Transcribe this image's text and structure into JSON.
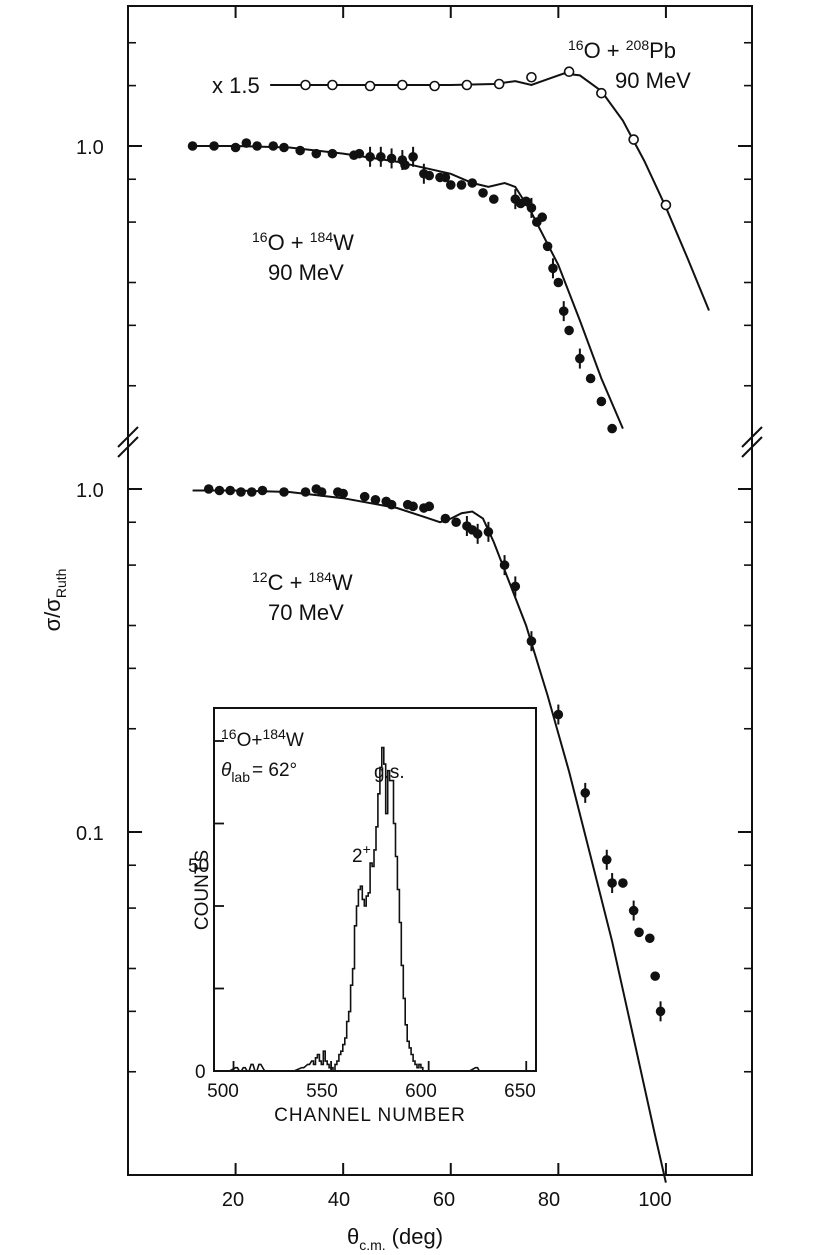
{
  "chart_data": [
    {
      "type": "scatter",
      "title": "",
      "xlabel_main": "θ",
      "xlabel_sub": "c.m.",
      "xlabel_unit": "(deg)",
      "ylabel_main": "σ/σ",
      "ylabel_sub": "Ruth",
      "yscale": "log",
      "xlim": [
        0,
        116
      ],
      "x_ticks": [
        20,
        40,
        60,
        80,
        100
      ],
      "x_tick_labels": [
        "20",
        "40",
        "60",
        "80",
        "100"
      ],
      "y_tick_labels": [
        "1.0",
        "1.0",
        "0.1"
      ],
      "break_marks": true,
      "series": [
        {
          "name": "16O + 208Pb 90 MeV",
          "label_pre": "16",
          "label_a": "O + ",
          "label_b_sup": "208",
          "label_b": "Pb",
          "label_energy": "90 MeV",
          "scale_label": "x 1.5",
          "marker": "open",
          "ylim": [
            0.4,
            1.6
          ],
          "x": [
            33,
            38,
            45,
            51,
            57,
            63,
            69,
            75,
            82,
            88,
            94,
            100
          ],
          "y": [
            1.5,
            1.5,
            1.49,
            1.5,
            1.49,
            1.5,
            1.51,
            1.58,
            1.64,
            1.42,
            1.04,
            0.67
          ],
          "curve_x": [
            32,
            40,
            50,
            60,
            68,
            72,
            75,
            78,
            81,
            84,
            88,
            92,
            96,
            100,
            104,
            108
          ],
          "curve_y": [
            1.5,
            1.5,
            1.5,
            1.5,
            1.51,
            1.54,
            1.5,
            1.56,
            1.62,
            1.6,
            1.44,
            1.18,
            0.9,
            0.66,
            0.47,
            0.33
          ]
        },
        {
          "name": "16O + 184W 90 MeV",
          "label_pre": "16",
          "label_a": "O + ",
          "label_b_sup": "184",
          "label_b": "W",
          "label_energy": "90 MeV",
          "marker": "filled",
          "ylim": [
            0.1,
            1.6
          ],
          "x": [
            12,
            16,
            20,
            22,
            24,
            27,
            29,
            32,
            35,
            38,
            42,
            43,
            45,
            47,
            49,
            51,
            51.5,
            53,
            55,
            56,
            58,
            59,
            60,
            62,
            64,
            66,
            68,
            72,
            73,
            74,
            75,
            76,
            77,
            78,
            79,
            80,
            81,
            82,
            84,
            86,
            88,
            90
          ],
          "y": [
            1.0,
            1.0,
            0.99,
            1.02,
            1.0,
            1.0,
            0.99,
            0.97,
            0.95,
            0.95,
            0.94,
            0.95,
            0.93,
            0.93,
            0.92,
            0.91,
            0.88,
            0.93,
            0.83,
            0.82,
            0.81,
            0.81,
            0.77,
            0.77,
            0.78,
            0.73,
            0.7,
            0.7,
            0.68,
            0.69,
            0.66,
            0.6,
            0.62,
            0.51,
            0.44,
            0.4,
            0.33,
            0.29,
            0.24,
            0.21,
            0.18,
            0.15
          ],
          "err_x": [
            45,
            47,
            49,
            51,
            53,
            55,
            72,
            75,
            79,
            81,
            84
          ],
          "curve_x": [
            12,
            20,
            30,
            40,
            50,
            60,
            64,
            67,
            70,
            72,
            75,
            80,
            84,
            88,
            92
          ],
          "curve_y": [
            1.0,
            1.0,
            0.99,
            0.95,
            0.9,
            0.83,
            0.78,
            0.76,
            0.78,
            0.76,
            0.64,
            0.45,
            0.31,
            0.21,
            0.15
          ]
        },
        {
          "name": "12C + 184W 70 MeV",
          "label_pre": "12",
          "label_a": "C + ",
          "label_b_sup": "184",
          "label_b": "W",
          "label_energy": "70 MeV",
          "marker": "filled",
          "ylim": [
            0.01,
            1.0
          ],
          "x": [
            15,
            17,
            19,
            21,
            23,
            25,
            29,
            33,
            35,
            36,
            39,
            40,
            44,
            46,
            48,
            49,
            52,
            53,
            55,
            56,
            59,
            61,
            63,
            64,
            65,
            67,
            70,
            72,
            75,
            80,
            85,
            89,
            90,
            92,
            94,
            95,
            97,
            98,
            99
          ],
          "y": [
            1.0,
            0.99,
            0.99,
            0.98,
            0.98,
            0.99,
            0.98,
            0.98,
            1.0,
            0.98,
            0.98,
            0.97,
            0.95,
            0.93,
            0.92,
            0.9,
            0.9,
            0.89,
            0.88,
            0.89,
            0.82,
            0.8,
            0.78,
            0.76,
            0.74,
            0.75,
            0.6,
            0.52,
            0.36,
            0.22,
            0.13,
            0.083,
            0.071,
            0.071,
            0.059,
            0.051,
            0.049,
            0.038,
            0.03
          ],
          "err_x": [
            63,
            65,
            67,
            70,
            72,
            75,
            80,
            85,
            89,
            90,
            94,
            99
          ],
          "curve_x": [
            12,
            20,
            30,
            40,
            50,
            55,
            58,
            60,
            62,
            64,
            66,
            68,
            70,
            74,
            78,
            82,
            86,
            90,
            94,
            98,
            100
          ],
          "curve_y": [
            0.99,
            0.99,
            0.98,
            0.94,
            0.88,
            0.83,
            0.8,
            0.82,
            0.85,
            0.86,
            0.82,
            0.7,
            0.58,
            0.4,
            0.25,
            0.15,
            0.085,
            0.048,
            0.025,
            0.013,
            0.0095
          ]
        }
      ]
    },
    {
      "type": "histogram",
      "title_pre": "16",
      "title_a": "O+",
      "title_b_sup": "184",
      "title_b": "W",
      "angle_label": "θ",
      "angle_sub": "lab",
      "angle_value": "= 62°",
      "xlabel": "CHANNEL NUMBER",
      "ylabel": "COUNTS",
      "xlim": [
        490,
        655
      ],
      "ylim": [
        0,
        110
      ],
      "x_tick_labels": [
        "500",
        "550",
        "600",
        "650"
      ],
      "y_tick_labels": [
        "0",
        "50"
      ],
      "peak_gs": "g.s.",
      "peak_2plus": "2",
      "peak_2plus_sup": "+",
      "x": [
        497,
        501,
        503,
        505,
        507,
        509,
        511,
        513,
        516,
        520,
        525,
        530,
        535,
        538,
        540,
        541,
        542,
        543,
        544,
        545,
        546,
        547,
        548,
        549,
        550,
        551,
        552,
        553,
        554,
        555,
        556,
        557,
        558,
        559,
        560,
        561,
        562,
        563,
        564,
        565,
        566,
        567,
        568,
        569,
        570,
        571,
        572,
        573,
        574,
        575,
        576,
        577,
        578,
        579,
        580,
        581,
        582,
        583,
        584,
        585,
        586,
        587,
        588,
        589,
        590,
        591,
        592,
        593,
        594,
        595,
        596,
        597,
        598,
        600,
        605,
        610,
        615,
        620,
        624,
        626,
        630,
        640
      ],
      "y": [
        0,
        1,
        0,
        1,
        0,
        2,
        0,
        2,
        0,
        0,
        0,
        0,
        1,
        2,
        3,
        2,
        4,
        5,
        3,
        2,
        6,
        3,
        2,
        1,
        1,
        0,
        2,
        3,
        5,
        6,
        8,
        10,
        15,
        18,
        26,
        31,
        44,
        50,
        55,
        56,
        52,
        50,
        53,
        54,
        63,
        62,
        67,
        74,
        84,
        92,
        98,
        93,
        78,
        91,
        88,
        88,
        75,
        65,
        55,
        45,
        32,
        22,
        14,
        9,
        7,
        5,
        3,
        2,
        1,
        2,
        1,
        0,
        0,
        0,
        0,
        0,
        0,
        0,
        1,
        0,
        0,
        0
      ]
    }
  ]
}
